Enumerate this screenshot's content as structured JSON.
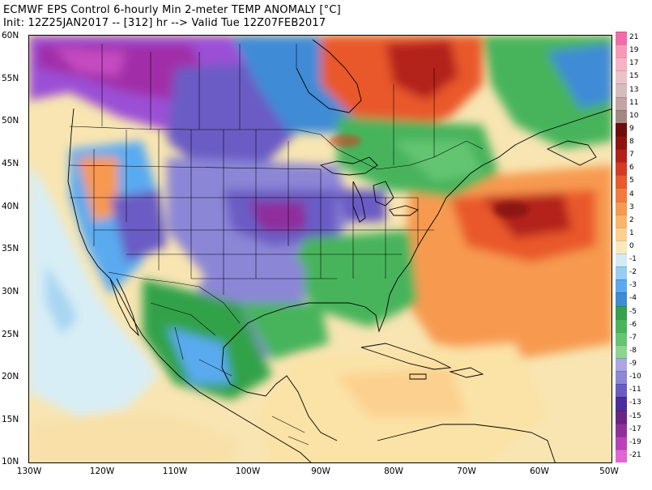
{
  "header": {
    "line1": "ECMWF EPS Control 6-hourly Min 2-meter TEMP ANOMALY [°C]",
    "line2": "Init: 12Z25JAN2017 -- [312] hr --> Valid Tue 12Z07FEB2017"
  },
  "axes": {
    "lat_labels": [
      "60N",
      "55N",
      "50N",
      "45N",
      "40N",
      "35N",
      "30N",
      "25N",
      "20N",
      "15N",
      "10N"
    ],
    "lon_labels": [
      "130W",
      "120W",
      "110W",
      "100W",
      "90W",
      "80W",
      "70W",
      "60W",
      "50W"
    ]
  },
  "colorbar": {
    "labels": [
      "21",
      "19",
      "17",
      "15",
      "13",
      "11",
      "10",
      "9",
      "8",
      "7",
      "6",
      "5",
      "4",
      "3",
      "2",
      "1",
      "0",
      "-1",
      "-2",
      "-3",
      "-4",
      "-5",
      "-6",
      "-7",
      "-8",
      "-9",
      "-10",
      "-11",
      "-13",
      "-15",
      "-17",
      "-19",
      "-21"
    ],
    "colors": [
      "#f26ca9",
      "#f79ab8",
      "#f7b3c4",
      "#ebc3c6",
      "#d6bcbc",
      "#c4a4a2",
      "#a48884",
      "#6e0d0a",
      "#8f130d",
      "#b4201a",
      "#d63a22",
      "#e9592c",
      "#f27a3c",
      "#f7994f",
      "#fbb46a",
      "#fcd08e",
      "#fbe9b8",
      "#d2ebf4",
      "#97cdf2",
      "#5aaaf0",
      "#3f8bd6",
      "#33a249",
      "#47b45c",
      "#64c572",
      "#8ad68f",
      "#a9a6e4",
      "#8c86d7",
      "#6a5bc4",
      "#4c2d9c",
      "#6a2483",
      "#8f2f9c",
      "#bb3fb8",
      "#e065d3"
    ]
  }
}
